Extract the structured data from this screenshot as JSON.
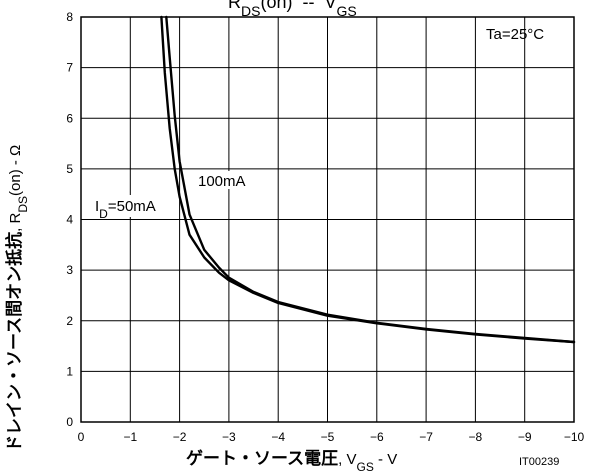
{
  "chart_data": {
    "type": "line",
    "title": "RDS(on)  --  VGS",
    "title_parts": {
      "r": "R",
      "r_sub": "DS",
      "r_on": "(on)",
      "sep": "  --  ",
      "v": "V",
      "v_sub": "GS"
    },
    "xlabel_parts": {
      "jp": "ゲート・ソース電圧",
      "sep": ", ",
      "v": "V",
      "v_sub": "GS",
      "unit": " - V"
    },
    "ylabel_parts": {
      "jp": "ドレイン・ソース間オン抵抗",
      "sep": ", ",
      "r": "R",
      "r_sub": "DS",
      "r_on": "(on)",
      "unit": " - Ω"
    },
    "annotation": "Ta=25°C",
    "figure_id": "IT00239",
    "x_tick_labels": [
      "0",
      "−1",
      "−2",
      "−3",
      "−4",
      "−5",
      "−6",
      "−7",
      "−8",
      "−9",
      "−10"
    ],
    "x_ticks": [
      0,
      -1,
      -2,
      -3,
      -4,
      -5,
      -6,
      -7,
      -8,
      -9,
      -10
    ],
    "y_ticks": [
      0,
      1,
      2,
      3,
      4,
      5,
      6,
      7,
      8
    ],
    "xlim": [
      0,
      -10
    ],
    "ylim": [
      0,
      8
    ],
    "grid": true,
    "series": [
      {
        "name": "ID=50mA",
        "label_parts": {
          "i": "I",
          "i_sub": "D",
          "rest": "=50mA"
        },
        "x": [
          -1.63,
          -1.7,
          -1.8,
          -1.9,
          -2.0,
          -2.2,
          -2.5,
          -2.8,
          -3.0,
          -3.5,
          -4.0,
          -5.0,
          -6.0,
          -7.0,
          -8.0,
          -9.0,
          -10.0
        ],
        "y": [
          8.0,
          6.9,
          5.8,
          5.0,
          4.45,
          3.7,
          3.25,
          2.95,
          2.8,
          2.55,
          2.35,
          2.1,
          1.95,
          1.83,
          1.73,
          1.65,
          1.58
        ]
      },
      {
        "name": "100mA",
        "label_parts": {
          "rest": "100mA"
        },
        "x": [
          -1.73,
          -1.8,
          -1.9,
          -2.0,
          -2.2,
          -2.5,
          -2.8,
          -3.0,
          -3.5,
          -4.0,
          -5.0,
          -6.0,
          -7.0,
          -8.0,
          -9.0,
          -10.0
        ],
        "y": [
          8.0,
          7.2,
          6.05,
          5.15,
          4.1,
          3.4,
          3.05,
          2.85,
          2.57,
          2.37,
          2.12,
          1.96,
          1.84,
          1.74,
          1.66,
          1.58
        ]
      }
    ]
  }
}
